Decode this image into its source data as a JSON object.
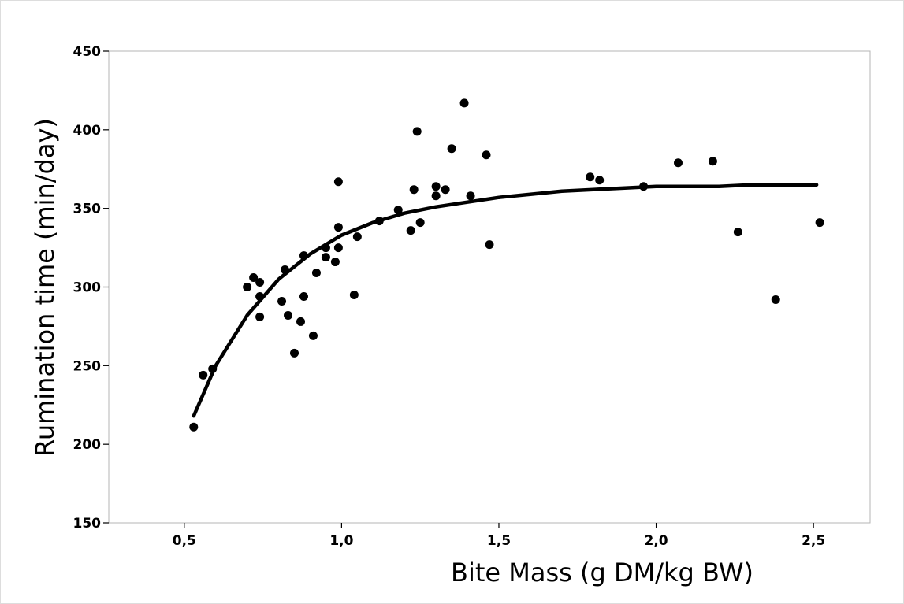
{
  "chart_data": {
    "type": "scatter",
    "xlabel": "Bite Mass (g DM/kg BW)",
    "ylabel": "Rumination time (min/day)",
    "xlim": [
      0.26,
      2.68
    ],
    "ylim": [
      150,
      450
    ],
    "x_ticks": [
      0.5,
      1.0,
      1.5,
      2.0,
      2.5
    ],
    "x_tick_labels": [
      "0,5",
      "1,0",
      "1,5",
      "2,0",
      "2,5"
    ],
    "y_ticks": [
      150,
      200,
      250,
      300,
      350,
      400,
      450
    ],
    "y_tick_labels": [
      "150",
      "200",
      "250",
      "300",
      "350",
      "400",
      "450"
    ],
    "grid": false,
    "legend": "none",
    "colors": {
      "points": "#000000",
      "curve": "#000000",
      "frame": "#b4b4b4",
      "background": "#ffffff"
    },
    "points": [
      [
        0.53,
        211
      ],
      [
        0.56,
        244
      ],
      [
        0.59,
        248
      ],
      [
        0.7,
        300
      ],
      [
        0.72,
        306
      ],
      [
        0.74,
        303
      ],
      [
        0.74,
        294
      ],
      [
        0.74,
        281
      ],
      [
        0.81,
        291
      ],
      [
        0.82,
        311
      ],
      [
        0.83,
        282
      ],
      [
        0.85,
        258
      ],
      [
        0.87,
        278
      ],
      [
        0.88,
        320
      ],
      [
        0.88,
        294
      ],
      [
        0.91,
        269
      ],
      [
        0.92,
        309
      ],
      [
        0.95,
        325
      ],
      [
        0.95,
        319
      ],
      [
        0.98,
        316
      ],
      [
        0.99,
        338
      ],
      [
        0.99,
        367
      ],
      [
        0.99,
        325
      ],
      [
        1.04,
        295
      ],
      [
        1.05,
        332
      ],
      [
        1.12,
        342
      ],
      [
        1.18,
        349
      ],
      [
        1.22,
        336
      ],
      [
        1.23,
        362
      ],
      [
        1.24,
        399
      ],
      [
        1.25,
        341
      ],
      [
        1.3,
        364
      ],
      [
        1.3,
        358
      ],
      [
        1.33,
        362
      ],
      [
        1.35,
        388
      ],
      [
        1.39,
        417
      ],
      [
        1.41,
        358
      ],
      [
        1.46,
        384
      ],
      [
        1.47,
        327
      ],
      [
        1.79,
        370
      ],
      [
        1.82,
        368
      ],
      [
        1.96,
        364
      ],
      [
        2.07,
        379
      ],
      [
        2.18,
        380
      ],
      [
        2.26,
        335
      ],
      [
        2.38,
        292
      ],
      [
        2.52,
        341
      ]
    ],
    "fit_curve": {
      "x": [
        0.53,
        0.6,
        0.7,
        0.8,
        0.9,
        1.0,
        1.1,
        1.2,
        1.3,
        1.4,
        1.5,
        1.6,
        1.7,
        1.8,
        1.9,
        2.0,
        2.1,
        2.2,
        2.3,
        2.4,
        2.51
      ],
      "y": [
        218,
        250,
        282,
        305,
        321,
        333,
        341,
        347,
        351,
        354,
        357,
        359,
        361,
        362,
        363,
        364,
        364,
        364,
        365,
        365,
        365
      ]
    }
  }
}
